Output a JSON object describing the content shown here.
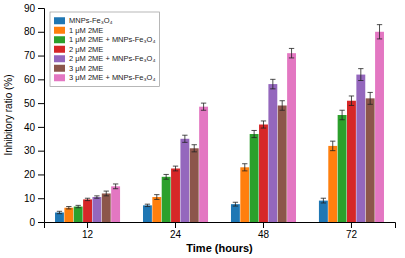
{
  "chart_data": {
    "type": "bar",
    "xlabel": "Time (hours)",
    "ylabel": "Inhibitory ratio (%)",
    "categories": [
      "12",
      "24",
      "48",
      "72"
    ],
    "series": [
      {
        "name": "MNPs-Fe₃O₄",
        "values": [
          4.0,
          7.0,
          7.5,
          9.0
        ],
        "errors": [
          0.5,
          0.5,
          0.8,
          1.0
        ]
      },
      {
        "name": "1 μM 2ME",
        "values": [
          6.0,
          10.5,
          23.0,
          32.0
        ],
        "errors": [
          0.5,
          1.0,
          1.5,
          2.0
        ]
      },
      {
        "name": "1 μM 2ME + MNPs-Fe₃O₄",
        "values": [
          6.5,
          19.0,
          37.0,
          45.0
        ],
        "errors": [
          0.5,
          1.0,
          1.5,
          2.0
        ]
      },
      {
        "name": "2 μM 2ME",
        "values": [
          9.5,
          22.5,
          41.0,
          51.0
        ],
        "errors": [
          0.5,
          1.0,
          1.5,
          2.0
        ]
      },
      {
        "name": "2 μM 2ME + MNPs-Fe₃O₄",
        "values": [
          10.5,
          35.0,
          58.0,
          62.0
        ],
        "errors": [
          0.5,
          1.5,
          2.0,
          2.5
        ]
      },
      {
        "name": "3 μM 2ME",
        "values": [
          12.0,
          31.0,
          49.0,
          52.0
        ],
        "errors": [
          1.0,
          1.5,
          2.0,
          2.5
        ]
      },
      {
        "name": "3 μM 2ME + MNPs-Fe₃O₄",
        "values": [
          15.0,
          48.5,
          71.0,
          80.0
        ],
        "errors": [
          1.0,
          1.5,
          2.0,
          3.0
        ]
      }
    ],
    "ylim": [
      0,
      90
    ],
    "yticks": [
      0,
      10,
      20,
      30,
      40,
      50,
      60,
      70,
      80,
      90
    ],
    "grid": false,
    "legend": "upper left"
  }
}
